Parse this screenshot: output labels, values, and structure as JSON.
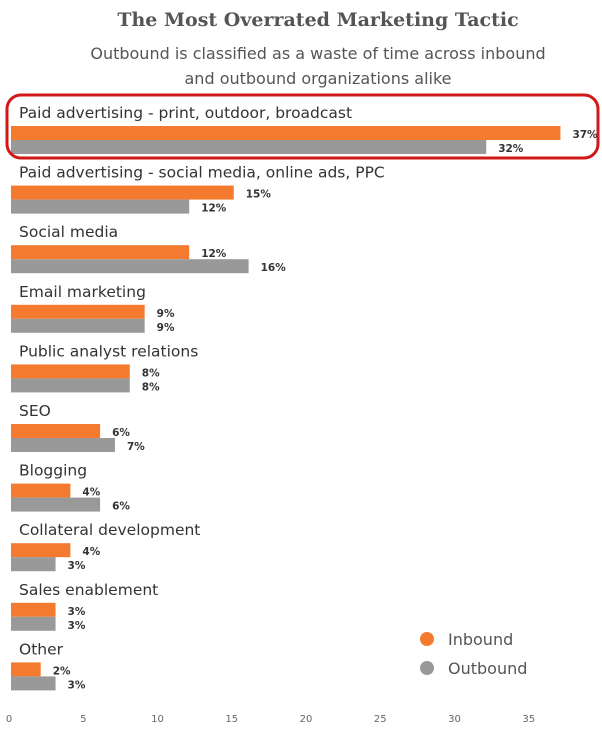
{
  "chart_data": {
    "type": "bar",
    "orientation": "horizontal",
    "title": "The Most Overrated Marketing Tactic",
    "subtitle_lines": [
      "Outbound is classified as a waste of time across inbound",
      "and outbound organizations alike"
    ],
    "categories": [
      "Paid advertising - print, outdoor, broadcast",
      "Paid advertising - social media, online ads, PPC",
      "Social media",
      "Email marketing",
      "Public analyst relations",
      "SEO",
      "Blogging",
      "Collateral development",
      "Sales enablement",
      "Other"
    ],
    "series": [
      {
        "name": "Inbound",
        "color": "#f47a2f",
        "values": [
          37,
          15,
          12,
          9,
          8,
          6,
          4,
          4,
          3,
          2
        ]
      },
      {
        "name": "Outbound",
        "color": "#999999",
        "values": [
          32,
          12,
          16,
          9,
          8,
          7,
          6,
          3,
          3,
          3
        ]
      }
    ],
    "value_suffix": "%",
    "xlim": [
      0,
      40
    ],
    "xticks": [
      0,
      5,
      10,
      15,
      20,
      25,
      30,
      35
    ],
    "highlighted_category": "Paid advertising - print, outdoor, broadcast",
    "grid": false,
    "legend_position": "bottom-right"
  }
}
